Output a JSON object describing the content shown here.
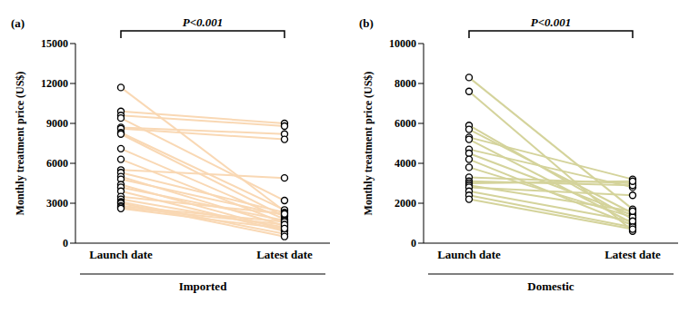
{
  "chart_data": [
    {
      "type": "line",
      "title": "(a)",
      "annotation": "P<0.001",
      "xlabel": "Imported",
      "ylabel": "Monthly treatment price (US$)",
      "categories": [
        "Launch date",
        "Latest date"
      ],
      "color": "#f9d8b4",
      "marker": "circle",
      "ylim": [
        0,
        15000
      ],
      "yticks": [
        0,
        3000,
        6000,
        9000,
        12000,
        15000
      ],
      "series": [
        {
          "values": [
            11700,
            2400
          ]
        },
        {
          "values": [
            9900,
            9000
          ]
        },
        {
          "values": [
            9600,
            8800
          ]
        },
        {
          "values": [
            9400,
            3200
          ]
        },
        {
          "values": [
            8700,
            8200
          ]
        },
        {
          "values": [
            8600,
            7800
          ]
        },
        {
          "values": [
            8300,
            2500
          ]
        },
        {
          "values": [
            8200,
            2000
          ]
        },
        {
          "values": [
            7100,
            1800
          ]
        },
        {
          "values": [
            6300,
            1500
          ]
        },
        {
          "values": [
            5500,
            4900
          ]
        },
        {
          "values": [
            5300,
            2300
          ]
        },
        {
          "values": [
            5000,
            1300
          ]
        },
        {
          "values": [
            4800,
            2100
          ]
        },
        {
          "values": [
            4400,
            1000
          ]
        },
        {
          "values": [
            4200,
            1700
          ]
        },
        {
          "values": [
            3900,
            900
          ]
        },
        {
          "values": [
            3500,
            2200
          ]
        },
        {
          "values": [
            3300,
            1200
          ]
        },
        {
          "values": [
            3100,
            700
          ]
        },
        {
          "values": [
            3000,
            500
          ]
        },
        {
          "values": [
            2800,
            1600
          ]
        },
        {
          "values": [
            2700,
            1400
          ]
        },
        {
          "values": [
            2600,
            1100
          ]
        }
      ]
    },
    {
      "type": "line",
      "title": "(b)",
      "annotation": "P<0.001",
      "xlabel": "Domestic",
      "ylabel": "Monthly treatment price (US$)",
      "categories": [
        "Launch date",
        "Latest date"
      ],
      "color": "#d4d39b",
      "marker": "circle",
      "ylim": [
        0,
        10000
      ],
      "yticks": [
        0,
        2000,
        4000,
        6000,
        8000,
        10000
      ],
      "series": [
        {
          "values": [
            8300,
            1700
          ]
        },
        {
          "values": [
            7600,
            600
          ]
        },
        {
          "values": [
            5900,
            1200
          ]
        },
        {
          "values": [
            5700,
            1500
          ]
        },
        {
          "values": [
            5300,
            3200
          ]
        },
        {
          "values": [
            5200,
            1000
          ]
        },
        {
          "values": [
            4700,
            2800
          ]
        },
        {
          "values": [
            4500,
            1400
          ]
        },
        {
          "values": [
            4200,
            900
          ]
        },
        {
          "values": [
            3800,
            1300
          ]
        },
        {
          "values": [
            3300,
            3000
          ]
        },
        {
          "values": [
            3100,
            2900
          ]
        },
        {
          "values": [
            3000,
            3100
          ]
        },
        {
          "values": [
            2900,
            1600
          ]
        },
        {
          "values": [
            2800,
            2400
          ]
        },
        {
          "values": [
            2600,
            1100
          ]
        },
        {
          "values": [
            2400,
            800
          ]
        },
        {
          "values": [
            2200,
            700
          ]
        }
      ]
    }
  ]
}
